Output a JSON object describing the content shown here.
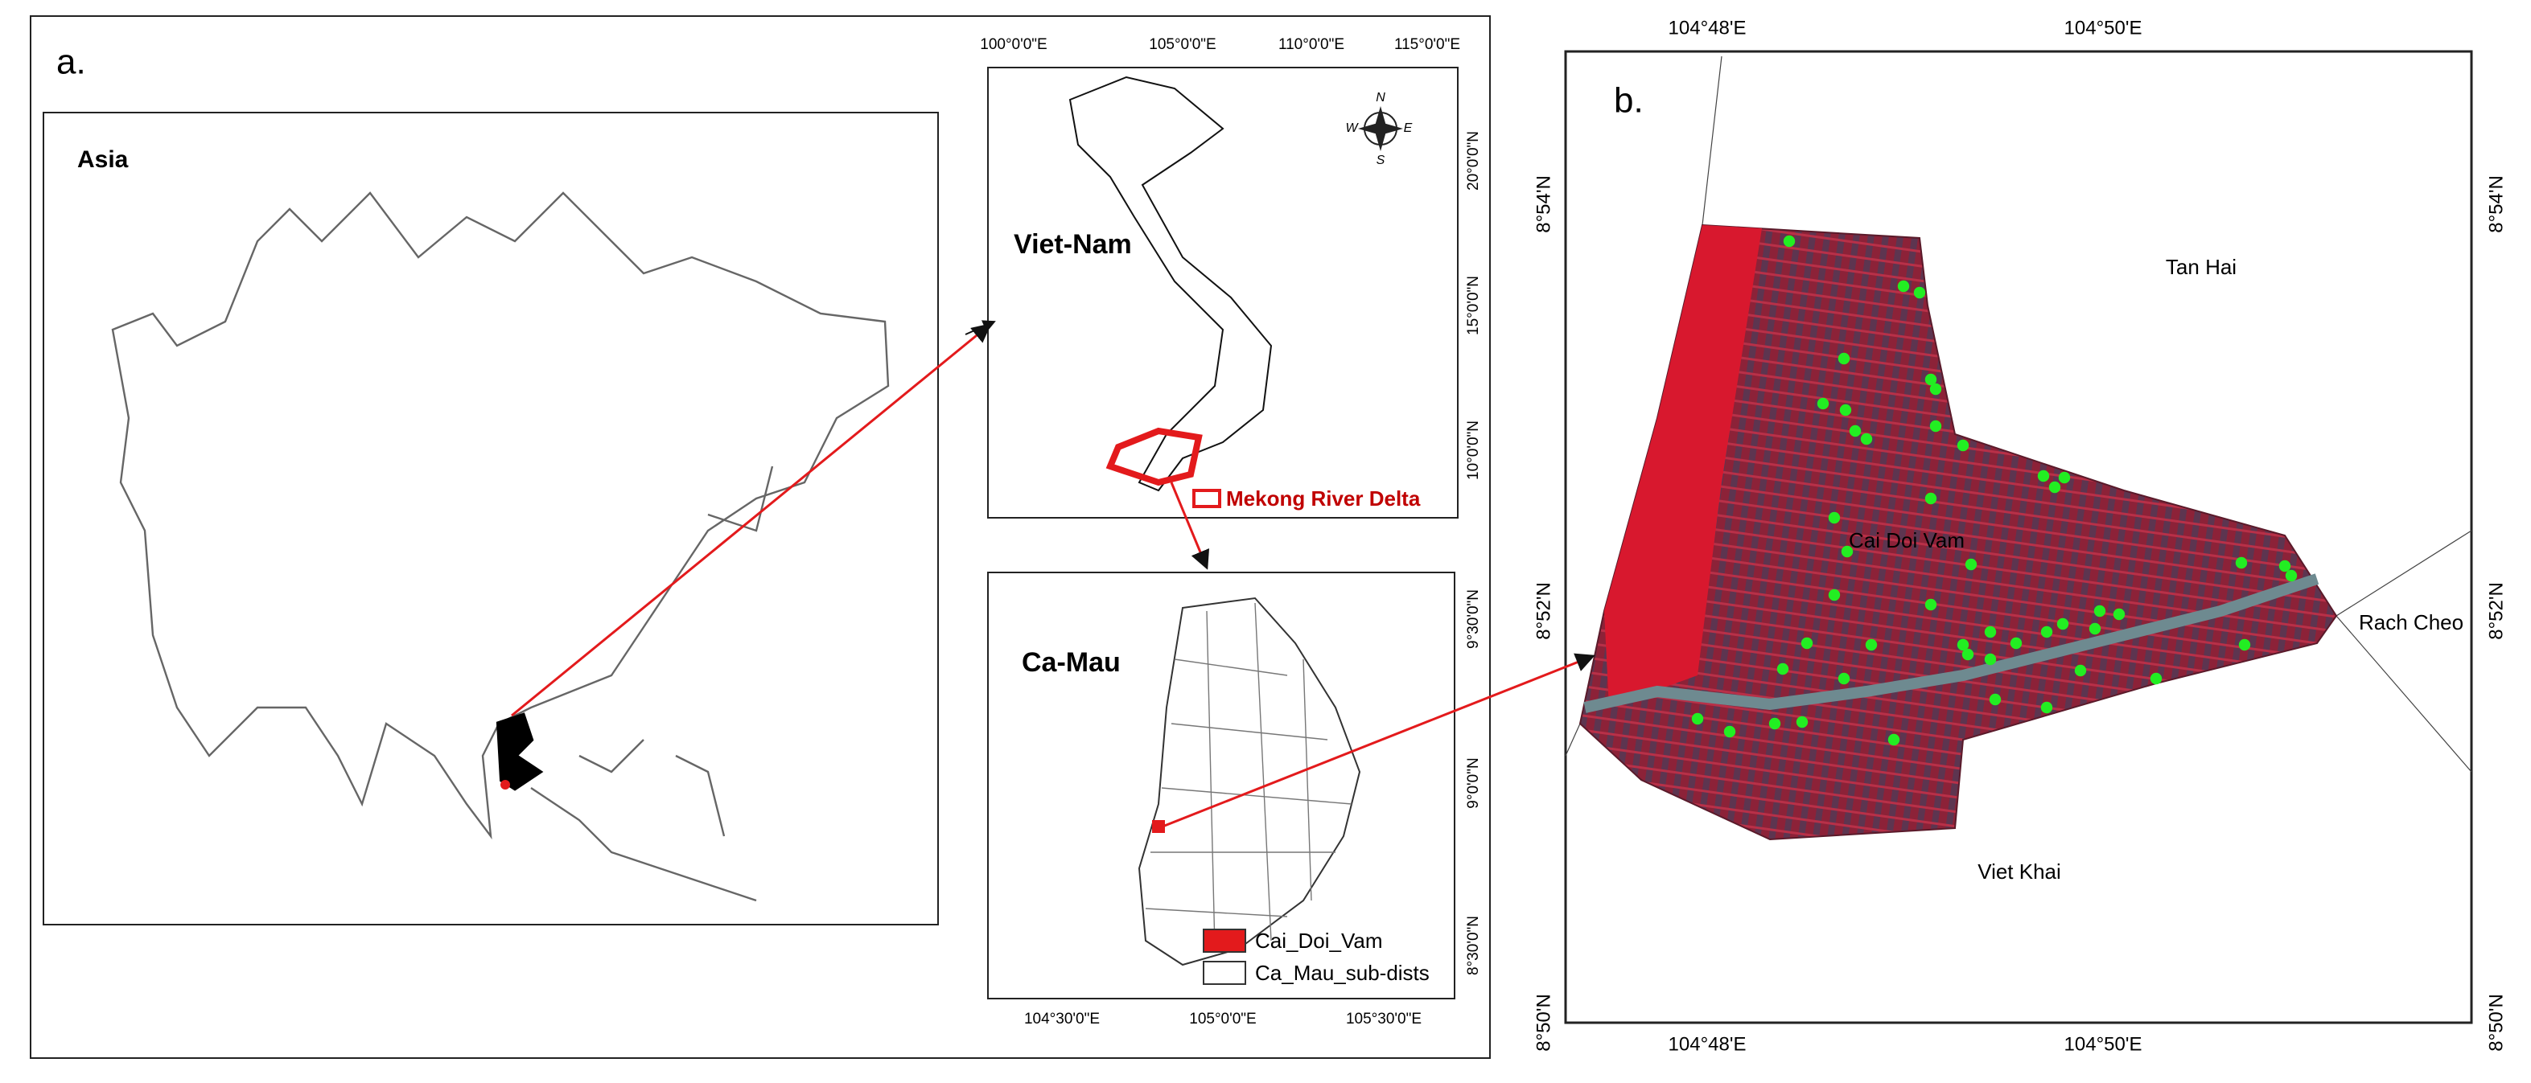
{
  "panel_a": {
    "label": "a.",
    "asia": {
      "title": "Asia"
    },
    "vietnam": {
      "title": "Viet-Nam",
      "top_ticks": [
        "100°0'0\"E",
        "105°0'0\"E",
        "110°0'0\"E",
        "115°0'0\"E"
      ],
      "right_ticks": [
        "20°0'0\"N",
        "15°0'0\"N",
        "10°0'0\"N"
      ],
      "compass": [
        "N",
        "E",
        "S",
        "W"
      ],
      "legend": "Mekong River Delta"
    },
    "camau": {
      "title": "Ca-Mau",
      "bottom_ticks": [
        "104°30'0\"E",
        "105°0'0\"E",
        "105°30'0\"E"
      ],
      "right_ticks": [
        "9°30'0\"N",
        "9°0'0\"N",
        "8°30'0\"N"
      ],
      "legend": [
        "Cai_Doi_Vam",
        "Ca_Mau_sub-dists"
      ]
    }
  },
  "panel_b": {
    "label": "b.",
    "top_ticks": [
      "104°48'E",
      "104°50'E"
    ],
    "bottom_ticks": [
      "104°48'E",
      "104°50'E"
    ],
    "left_ticks": [
      "8°54'N",
      "8°52'N",
      "8°50'N"
    ],
    "right_ticks": [
      "8°54'N",
      "8°52'N",
      "8°50'N"
    ],
    "places": [
      "Tan Hai",
      "Cai Doi Vam",
      "Rach Cheo",
      "Viet Khai"
    ]
  }
}
